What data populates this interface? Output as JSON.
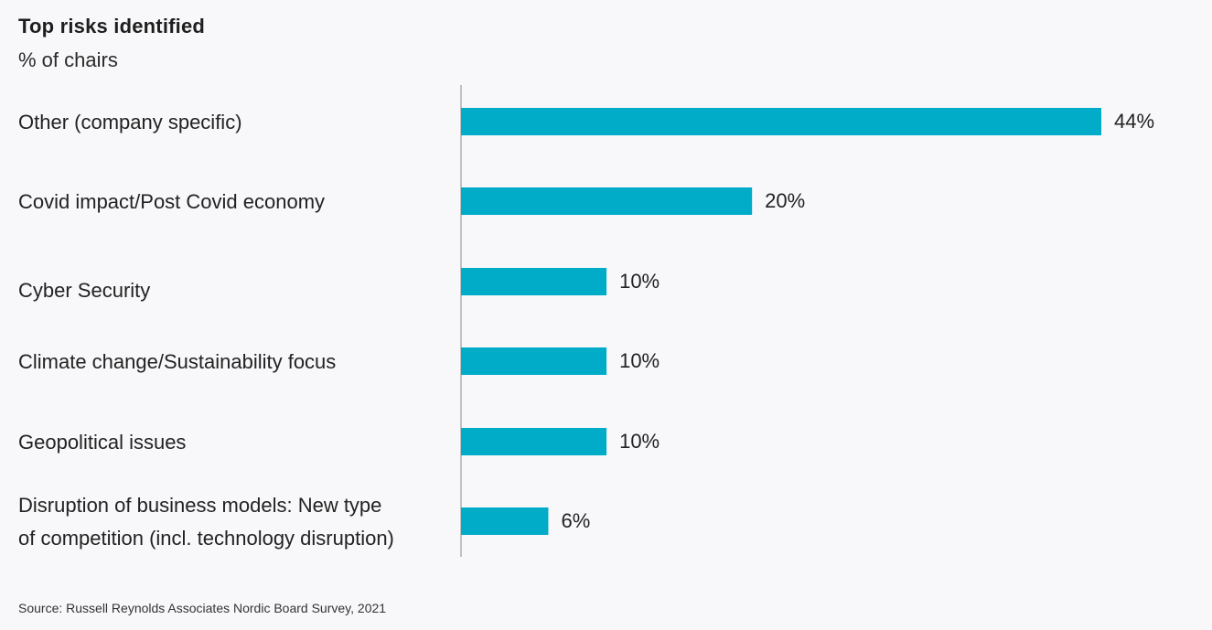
{
  "chart_data": {
    "type": "bar",
    "orientation": "horizontal",
    "title": "Top risks identified",
    "subtitle": "% of chairs",
    "categories": [
      [
        "Other (company specific)"
      ],
      [
        "Covid impact/Post Covid economy"
      ],
      [
        "Cyber Security"
      ],
      [
        "Climate change/Sustainability focus"
      ],
      [
        "Geopolitical issues"
      ],
      [
        "Disruption of business models: New type",
        "of competition (incl. technology disruption)"
      ]
    ],
    "values": [
      44,
      20,
      10,
      10,
      10,
      6
    ],
    "value_labels": [
      "44%",
      "20%",
      "10%",
      "10%",
      "10%",
      "6%"
    ],
    "xlim": [
      0,
      44
    ],
    "grid": false,
    "bar_color": "#00acc8",
    "source": "Source:  Russell Reynolds Associates Nordic Board Survey, 2021"
  }
}
